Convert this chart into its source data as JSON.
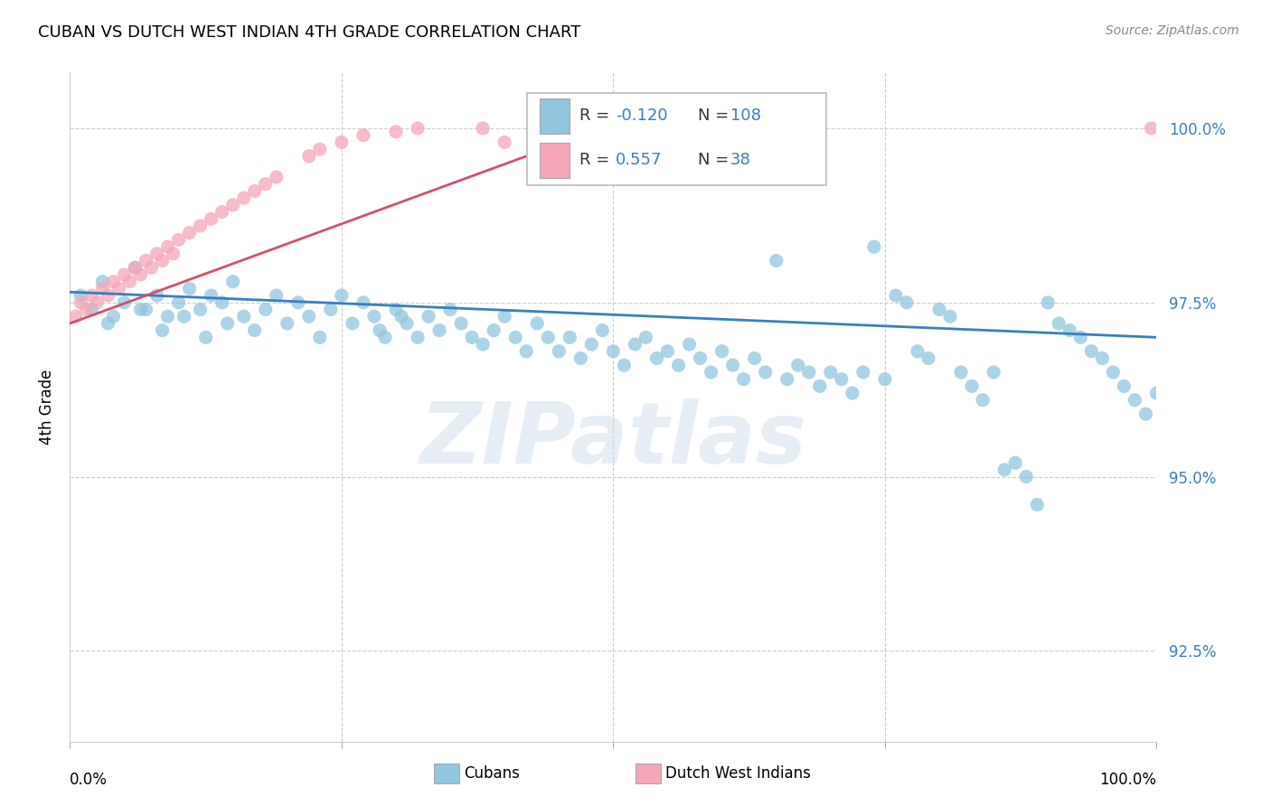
{
  "title": "CUBAN VS DUTCH WEST INDIAN 4TH GRADE CORRELATION CHART",
  "source": "Source: ZipAtlas.com",
  "ylabel": "4th Grade",
  "y_ticks": [
    92.5,
    95.0,
    97.5,
    100.0
  ],
  "y_tick_labels": [
    "92.5%",
    "95.0%",
    "97.5%",
    "100.0%"
  ],
  "x_range": [
    0.0,
    1.0
  ],
  "y_range": [
    91.2,
    100.8
  ],
  "blue_color": "#92c5de",
  "pink_color": "#f4a6b8",
  "blue_line_color": "#3a7ebf",
  "pink_line_color": "#d4506a",
  "grid_color": "#cccccc",
  "grid_style": "--",
  "watermark_text": "ZIPatlas",
  "legend_r1_label": "R = ",
  "legend_r1_val": "-0.120",
  "legend_n1_label": "N = ",
  "legend_n1_val": "108",
  "legend_r2_label": "R =  ",
  "legend_r2_val": "0.557",
  "legend_n2_label": "N =  ",
  "legend_n2_val": "38",
  "cubans_x": [
    0.01,
    0.02,
    0.03,
    0.04,
    0.05,
    0.06,
    0.07,
    0.08,
    0.09,
    0.1,
    0.11,
    0.12,
    0.13,
    0.14,
    0.15,
    0.16,
    0.17,
    0.18,
    0.19,
    0.2,
    0.21,
    0.22,
    0.23,
    0.24,
    0.25,
    0.26,
    0.27,
    0.28,
    0.29,
    0.3,
    0.31,
    0.32,
    0.33,
    0.34,
    0.35,
    0.36,
    0.37,
    0.38,
    0.39,
    0.4,
    0.41,
    0.42,
    0.43,
    0.44,
    0.45,
    0.46,
    0.47,
    0.48,
    0.49,
    0.5,
    0.51,
    0.52,
    0.53,
    0.54,
    0.55,
    0.56,
    0.57,
    0.58,
    0.59,
    0.6,
    0.61,
    0.62,
    0.63,
    0.64,
    0.65,
    0.66,
    0.67,
    0.68,
    0.69,
    0.7,
    0.71,
    0.72,
    0.73,
    0.74,
    0.75,
    0.76,
    0.77,
    0.78,
    0.79,
    0.8,
    0.81,
    0.82,
    0.83,
    0.84,
    0.85,
    0.86,
    0.87,
    0.88,
    0.89,
    0.9,
    0.91,
    0.92,
    0.93,
    0.94,
    0.95,
    0.96,
    0.97,
    0.98,
    0.99,
    1.0,
    0.035,
    0.065,
    0.085,
    0.105,
    0.125,
    0.145,
    0.285,
    0.305
  ],
  "cubans_y": [
    97.6,
    97.4,
    97.8,
    97.3,
    97.5,
    98.0,
    97.4,
    97.6,
    97.3,
    97.5,
    97.7,
    97.4,
    97.6,
    97.5,
    97.8,
    97.3,
    97.1,
    97.4,
    97.6,
    97.2,
    97.5,
    97.3,
    97.0,
    97.4,
    97.6,
    97.2,
    97.5,
    97.3,
    97.0,
    97.4,
    97.2,
    97.0,
    97.3,
    97.1,
    97.4,
    97.2,
    97.0,
    96.9,
    97.1,
    97.3,
    97.0,
    96.8,
    97.2,
    97.0,
    96.8,
    97.0,
    96.7,
    96.9,
    97.1,
    96.8,
    96.6,
    96.9,
    97.0,
    96.7,
    96.8,
    96.6,
    96.9,
    96.7,
    96.5,
    96.8,
    96.6,
    96.4,
    96.7,
    96.5,
    98.1,
    96.4,
    96.6,
    96.5,
    96.3,
    96.5,
    96.4,
    96.2,
    96.5,
    98.3,
    96.4,
    97.6,
    97.5,
    96.8,
    96.7,
    97.4,
    97.3,
    96.5,
    96.3,
    96.1,
    96.5,
    95.1,
    95.2,
    95.0,
    94.6,
    97.5,
    97.2,
    97.1,
    97.0,
    96.8,
    96.7,
    96.5,
    96.3,
    96.1,
    95.9,
    96.2,
    97.2,
    97.4,
    97.1,
    97.3,
    97.0,
    97.2,
    97.1,
    97.3
  ],
  "dutch_x": [
    0.005,
    0.01,
    0.015,
    0.02,
    0.025,
    0.03,
    0.035,
    0.04,
    0.045,
    0.05,
    0.055,
    0.06,
    0.065,
    0.07,
    0.075,
    0.08,
    0.085,
    0.09,
    0.095,
    0.1,
    0.11,
    0.12,
    0.13,
    0.14,
    0.15,
    0.16,
    0.17,
    0.18,
    0.19,
    0.22,
    0.23,
    0.25,
    0.27,
    0.3,
    0.32,
    0.38,
    0.4,
    0.995
  ],
  "dutch_y": [
    97.3,
    97.5,
    97.4,
    97.6,
    97.5,
    97.7,
    97.6,
    97.8,
    97.7,
    97.9,
    97.8,
    98.0,
    97.9,
    98.1,
    98.0,
    98.2,
    98.1,
    98.3,
    98.2,
    98.4,
    98.5,
    98.6,
    98.7,
    98.8,
    98.9,
    99.0,
    99.1,
    99.2,
    99.3,
    99.6,
    99.7,
    99.8,
    99.9,
    99.95,
    100.0,
    100.0,
    99.8,
    100.0
  ],
  "blue_line_x": [
    0.0,
    1.0
  ],
  "blue_line_y": [
    97.65,
    97.0
  ],
  "pink_line_x": [
    0.0,
    0.42
  ],
  "pink_line_y": [
    97.2,
    99.6
  ]
}
